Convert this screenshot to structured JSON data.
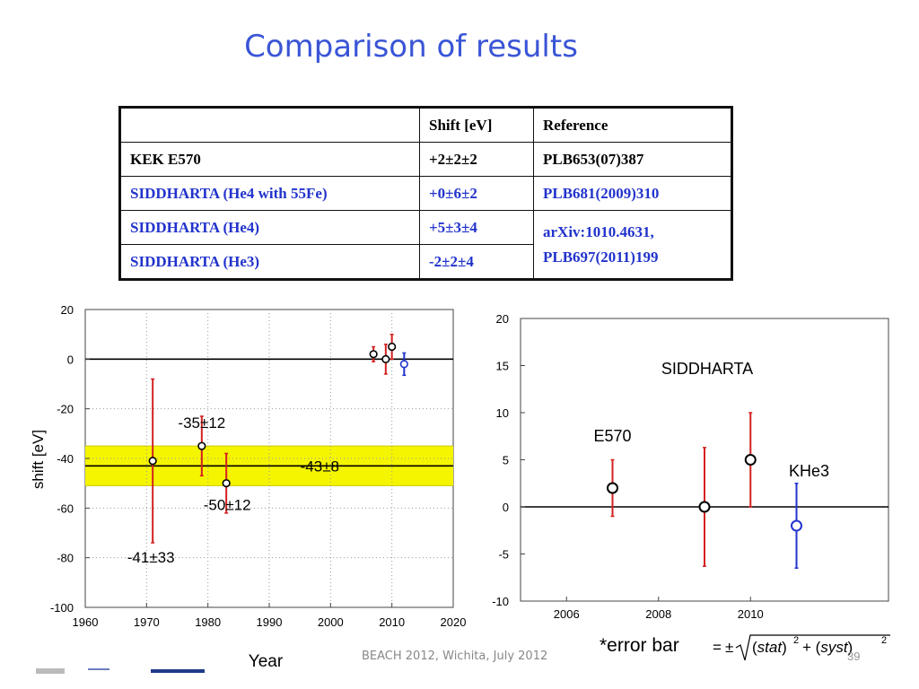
{
  "slide": {
    "title": "Comparison of results",
    "footer": "BEACH 2012, Wichita, July 2012",
    "page_number": "39",
    "error_bar_label": "*error bar"
  },
  "table": {
    "headers": [
      "",
      "Shift [eV]",
      "Reference"
    ],
    "rows": [
      {
        "name": "KEK E570",
        "shift": "+2±2±2",
        "reference": "PLB653(07)387",
        "color": "#000000"
      },
      {
        "name": "SIDDHARTA (He4 with 55Fe)",
        "shift": "+0±6±2",
        "reference": "PLB681(2009)310",
        "color": "#2233cc"
      },
      {
        "name": "SIDDHARTA (He4)",
        "shift": "+5±3±4",
        "reference": "arXiv:1010.4631,",
        "reference2": "PLB697(2011)199",
        "color": "#2233cc"
      },
      {
        "name": "SIDDHARTA (He3)",
        "shift": "-2±2±4",
        "color": "#2233cc"
      }
    ]
  },
  "chart_data": [
    {
      "type": "scatter",
      "xlabel": "Year",
      "ylabel": "shift [eV]",
      "xlim": [
        1960,
        2020
      ],
      "ylim": [
        -100,
        20
      ],
      "xticks": [
        1960,
        1970,
        1980,
        1990,
        2000,
        2010,
        2020
      ],
      "yticks": [
        20,
        0,
        -20,
        -40,
        -60,
        -80,
        -100
      ],
      "band": {
        "center": -43,
        "low": -51,
        "high": -35,
        "label": "-43±8",
        "color": "#f5f500"
      },
      "points": [
        {
          "x": 1971,
          "y": -41,
          "low": -74,
          "high": -8,
          "color": "#d42020",
          "label": "-41±33"
        },
        {
          "x": 1979,
          "y": -35,
          "low": -47,
          "high": -23,
          "color": "#d42020",
          "label": "-35±12"
        },
        {
          "x": 1983,
          "y": -50,
          "low": -62,
          "high": -38,
          "color": "#d42020",
          "label": "-50±12"
        },
        {
          "x": 2007,
          "y": 2,
          "low": -1,
          "high": 5,
          "color": "#d42020"
        },
        {
          "x": 2009,
          "y": 0,
          "low": -6,
          "high": 6,
          "color": "#d42020"
        },
        {
          "x": 2010,
          "y": 5,
          "low": 0,
          "high": 10,
          "color": "#d42020"
        },
        {
          "x": 2012,
          "y": -2,
          "low": -6.5,
          "high": 2.5,
          "color": "#2233cc"
        }
      ]
    },
    {
      "type": "scatter",
      "title": "SIDDHARTA",
      "xlim": [
        2005,
        2013
      ],
      "ylim": [
        -10,
        20
      ],
      "xticks": [
        2006,
        2008,
        2010
      ],
      "yticks": [
        20,
        15,
        10,
        5,
        0,
        -5,
        -10
      ],
      "points": [
        {
          "x": 2007,
          "y": 2,
          "low": -1,
          "high": 5,
          "color": "#d42020",
          "label": "E570"
        },
        {
          "x": 2009,
          "y": 0,
          "low": -6.3,
          "high": 6.3,
          "color": "#d42020"
        },
        {
          "x": 2010,
          "y": 5,
          "low": 0,
          "high": 10,
          "color": "#d42020"
        },
        {
          "x": 2011,
          "y": -2,
          "low": -6.5,
          "high": 2.5,
          "color": "#2233cc",
          "label": "KHe3"
        }
      ]
    }
  ]
}
